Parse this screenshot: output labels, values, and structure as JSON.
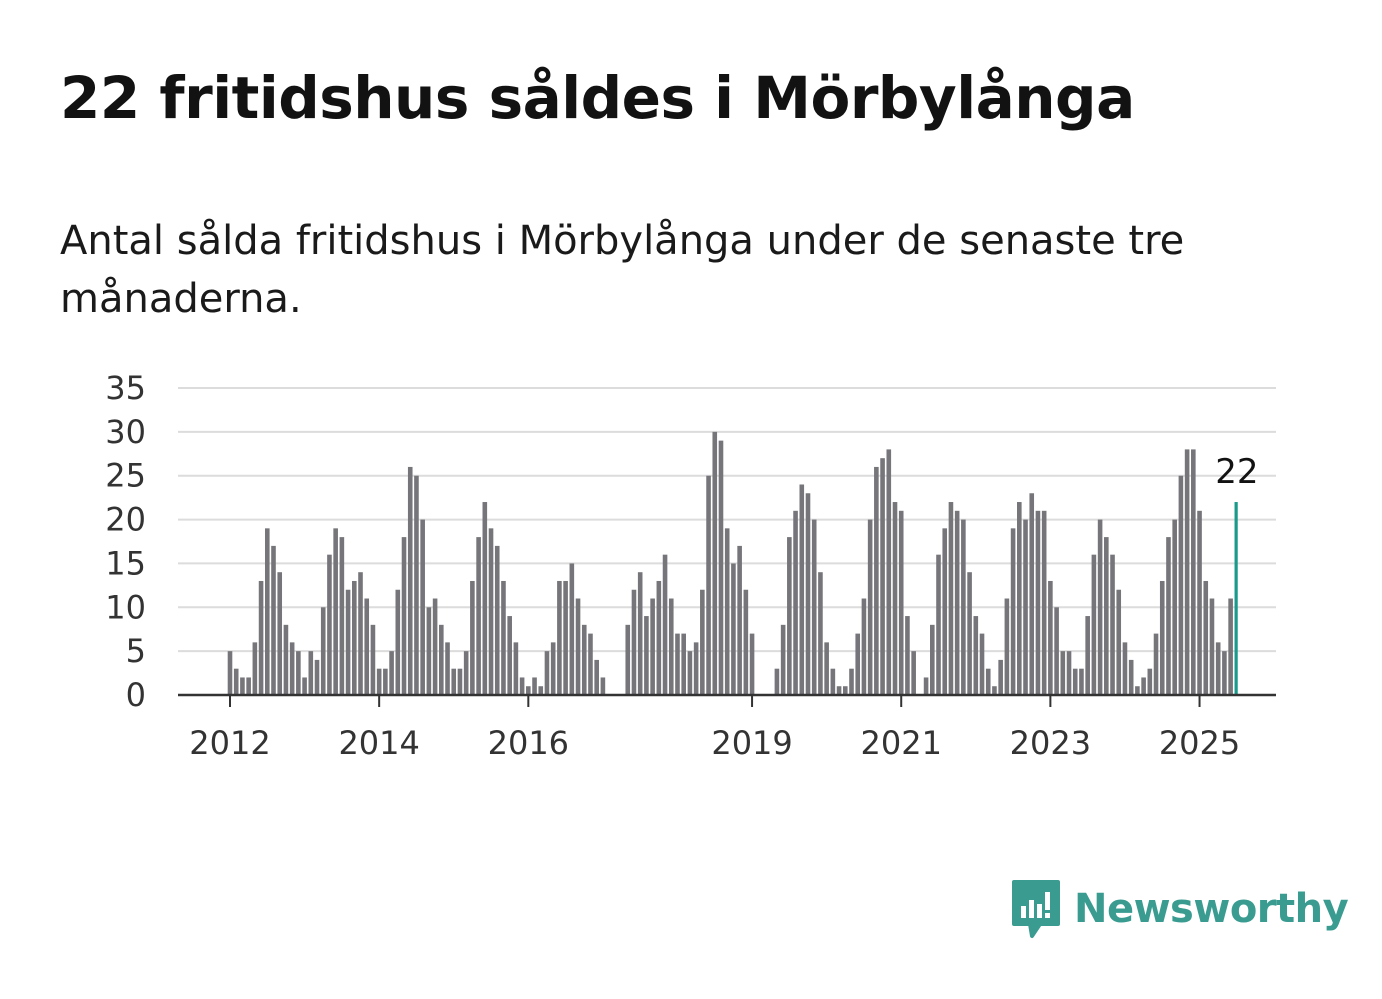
{
  "header": {
    "title": "22 fritidshus såldes i Mörbylånga",
    "subtitle": "Antal sålda fritidshus i Mörbylånga under de senaste tre månaderna."
  },
  "branding": {
    "logo_text": "Newsworthy",
    "logo_color": "#3a9c91"
  },
  "colors": {
    "bar": "#76757a",
    "highlight": "#1a9a8b",
    "grid": "#dcdcdc",
    "axis": "#333333"
  },
  "chart_data": {
    "type": "bar",
    "ylim": [
      0,
      35
    ],
    "yticks": [
      "0",
      "5",
      "10",
      "15",
      "20",
      "25",
      "30",
      "35"
    ],
    "xticks": [
      "2012",
      "2014",
      "2016",
      "2019",
      "2021",
      "2023",
      "2025"
    ],
    "grid": true,
    "highlight_label": "22",
    "series": [
      {
        "values": [
          5,
          3,
          2,
          2,
          6,
          13,
          19,
          17,
          14,
          8,
          6,
          5,
          2,
          5,
          4,
          10,
          16,
          19,
          18,
          12,
          13,
          14,
          11,
          8,
          3,
          3,
          5,
          12,
          18,
          26,
          25,
          20,
          10,
          11,
          8,
          6,
          3,
          3,
          5,
          13,
          18,
          22,
          19,
          17,
          13,
          9,
          6,
          2,
          1,
          2,
          1,
          5,
          6,
          13,
          13,
          15,
          11,
          8,
          7,
          4,
          2,
          0,
          0,
          0,
          8,
          12,
          14,
          9,
          11,
          13,
          16,
          11,
          7,
          7,
          5,
          6,
          12,
          25,
          30,
          29,
          19,
          15,
          17,
          12,
          7,
          0,
          0,
          0,
          3,
          8,
          18,
          21,
          24,
          23,
          20,
          14,
          6,
          3,
          1,
          1,
          3,
          7,
          11,
          20,
          26,
          27,
          28,
          22,
          21,
          9,
          5,
          0,
          2,
          8,
          16,
          19,
          22,
          21,
          20,
          14,
          9,
          7,
          3,
          1,
          4,
          11,
          19,
          22,
          20,
          23,
          21,
          21,
          13,
          10,
          5,
          5,
          3,
          3,
          9,
          16,
          20,
          18,
          16,
          12,
          6,
          4,
          1,
          2,
          3,
          7,
          13,
          18,
          20,
          25,
          28,
          28,
          21,
          13,
          11,
          6,
          5,
          11,
          22
        ]
      }
    ]
  }
}
